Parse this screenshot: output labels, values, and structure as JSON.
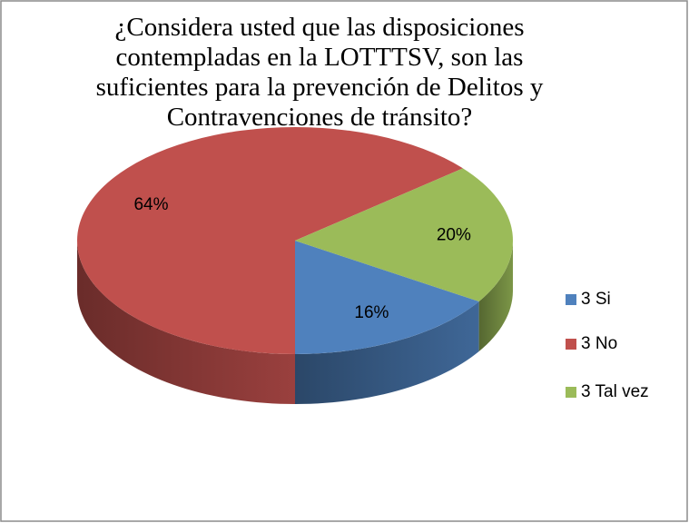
{
  "chart_data": {
    "type": "pie",
    "title": "¿Considera usted que las disposiciones contempladas en la LOTTTSV, son las suficientes para la prevención de Delitos y Contravenciones de tránsito?",
    "categories": [
      "3 Si",
      "3 No",
      "3 Tal vez"
    ],
    "values": [
      16,
      64,
      20
    ],
    "value_labels": [
      "16%",
      "64%",
      "20%"
    ],
    "colors": [
      "#4f81bd",
      "#c0504d",
      "#9bbb59"
    ],
    "legend": "right"
  }
}
